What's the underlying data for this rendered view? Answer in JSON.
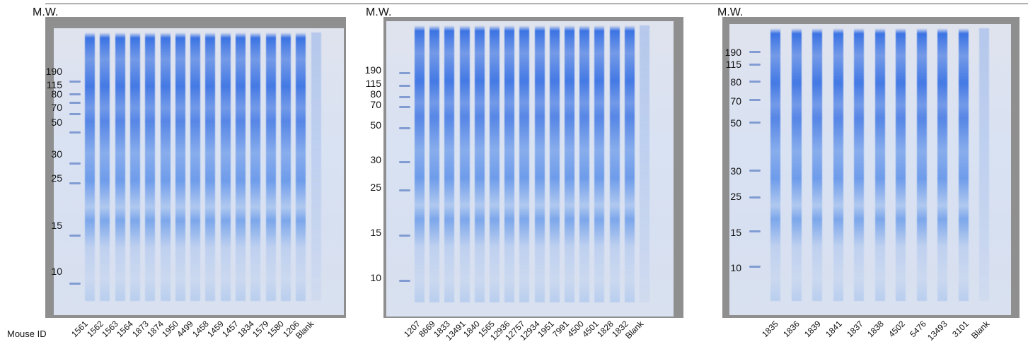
{
  "mw_header": "M.W.",
  "mouse_id_label": "Mouse ID",
  "panels": [
    {
      "mw_markers": [
        "190",
        "115",
        "80",
        "70",
        "50",
        "30",
        "25",
        "15",
        "10"
      ],
      "lane_ids": [
        "1561",
        "1562",
        "1563",
        "1564",
        "1873",
        "1874",
        "1950",
        "4499",
        "1458",
        "1459",
        "1457",
        "1834",
        "1579",
        "1580",
        "1206",
        "Blank"
      ]
    },
    {
      "mw_markers": [
        "190",
        "115",
        "80",
        "70",
        "50",
        "30",
        "25",
        "15",
        "10"
      ],
      "lane_ids": [
        "1207",
        "8669",
        "1833",
        "13491",
        "1840",
        "1565",
        "12936",
        "12757",
        "12934",
        "1951",
        "7991",
        "4500",
        "4501",
        "1828",
        "1832",
        "Blank"
      ]
    },
    {
      "mw_markers": [
        "190",
        "115",
        "80",
        "70",
        "50",
        "30",
        "25",
        "15",
        "10"
      ],
      "lane_ids": [
        "1835",
        "1836",
        "1839",
        "1841",
        "1837",
        "1838",
        "4502",
        "5476",
        "13493",
        "3101",
        "Blank"
      ]
    }
  ]
}
